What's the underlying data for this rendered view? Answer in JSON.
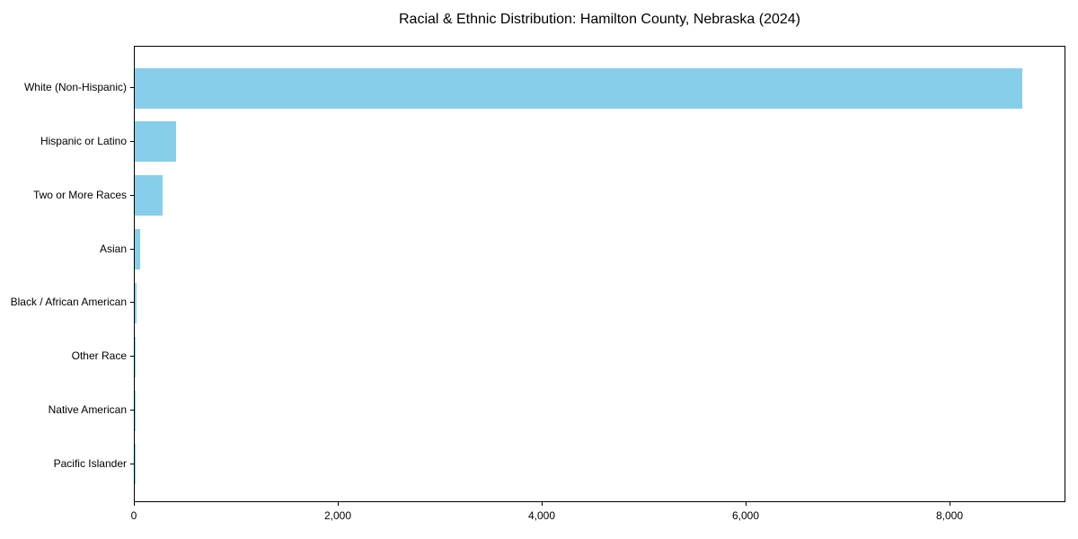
{
  "title": "Racial & Ethnic Distribution: Hamilton County, Nebraska (2024)",
  "colors": {
    "bar": "#87CEEB",
    "axis": "#000000",
    "background": "#FFFFFF",
    "text": "#000000"
  },
  "chart_data": {
    "type": "bar",
    "orientation": "horizontal",
    "title": "Racial & Ethnic Distribution: Hamilton County, Nebraska (2024)",
    "categories": [
      "White (Non-Hispanic)",
      "Hispanic or Latino",
      "Two or More Races",
      "Asian",
      "Black / African American",
      "Other Race",
      "Native American",
      "Pacific Islander"
    ],
    "values": [
      8700,
      405,
      275,
      50,
      15,
      10,
      8,
      3
    ],
    "bar_color": "#87CEEB",
    "xlabel": "",
    "ylabel": "",
    "xlim": [
      0,
      9135
    ],
    "xticks": [
      0,
      2000,
      4000,
      6000,
      8000
    ],
    "xtick_labels": [
      "0",
      "2,000",
      "4,000",
      "6,000",
      "8,000"
    ],
    "grid": false,
    "legend": null
  }
}
